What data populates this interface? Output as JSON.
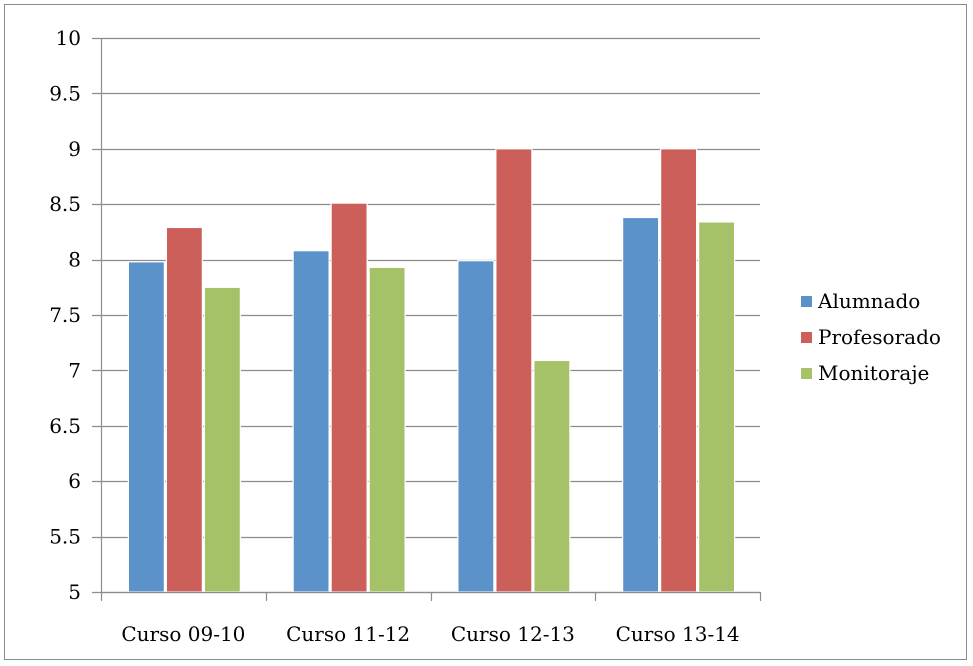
{
  "chart_data": {
    "type": "bar",
    "categories": [
      "Curso 09-10",
      "Curso 11-12",
      "Curso 12-13",
      "Curso 13-14"
    ],
    "series": [
      {
        "name": "Alumnado",
        "color": "#5b92c9",
        "values": [
          7.98,
          8.08,
          7.99,
          8.38
        ]
      },
      {
        "name": "Profesorado",
        "color": "#cd5f5a",
        "values": [
          8.29,
          8.51,
          9.0,
          9.0
        ]
      },
      {
        "name": "Monitoraje",
        "color": "#a6c268",
        "values": [
          7.75,
          7.93,
          7.09,
          8.34
        ]
      }
    ],
    "ylim": [
      5,
      10
    ],
    "yticks": [
      "5",
      "5.5",
      "6",
      "6.5",
      "7",
      "7.5",
      "8",
      "8.5",
      "9",
      "9.5",
      "10"
    ],
    "grid": true,
    "legend_position": "right",
    "title": "",
    "xlabel": "",
    "ylabel": ""
  }
}
